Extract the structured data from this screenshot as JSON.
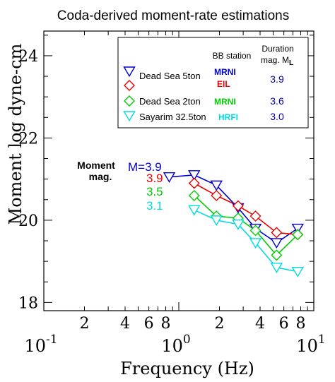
{
  "chart_data": {
    "type": "line",
    "title": "Coda-derived moment-rate estimations",
    "xlabel": "Frequency (Hz)",
    "ylabel": "Moment log dyne-cm",
    "x_scale": "log",
    "xlim": [
      0.1,
      10
    ],
    "ylim": [
      17.8,
      24.6
    ],
    "x_major_ticks": [
      {
        "value": 0.1,
        "base": "10",
        "exp": "-1"
      },
      {
        "value": 1,
        "base": "10",
        "exp": "0"
      },
      {
        "value": 10,
        "base": "10",
        "exp": "1"
      }
    ],
    "x_minor_ticks": [
      {
        "value": 0.2,
        "label": "2"
      },
      {
        "value": 0.4,
        "label": "4"
      },
      {
        "value": 0.6,
        "label": "6"
      },
      {
        "value": 0.8,
        "label": "8"
      },
      {
        "value": 2,
        "label": "2"
      },
      {
        "value": 4,
        "label": "4"
      },
      {
        "value": 6,
        "label": "6"
      },
      {
        "value": 8,
        "label": "8"
      }
    ],
    "y_ticks": [
      {
        "value": 18,
        "label": "18"
      },
      {
        "value": 20,
        "label": "20"
      },
      {
        "value": 22,
        "label": "22"
      },
      {
        "value": 24,
        "label": "24"
      }
    ],
    "legend": {
      "position": "top-right",
      "header_station": "BB station",
      "header_duration_line1": "Duration",
      "header_duration_line2": "mag. M",
      "header_duration_sub": "L",
      "entries": [
        {
          "event": "Dead Sea 5ton",
          "stations": [
            "MRNI",
            "EIL"
          ],
          "station_colors": [
            "#0000cc",
            "#ee0000"
          ],
          "ml": "3.9",
          "markers": [
            "tri-down",
            "diamond"
          ],
          "marker_colors": [
            "#0000cc",
            "#ee0000"
          ]
        },
        {
          "event": "Dead Sea 2ton",
          "stations": [
            "MRNI"
          ],
          "station_colors": [
            "#00cc00"
          ],
          "ml": "3.6",
          "markers": [
            "diamond"
          ],
          "marker_colors": [
            "#00cc00"
          ]
        },
        {
          "event": "Sayarim 32.5ton",
          "stations": [
            "HRFI"
          ],
          "station_colors": [
            "#00dddd"
          ],
          "ml": "3.0",
          "markers": [
            "tri-down"
          ],
          "marker_colors": [
            "#00dddd"
          ]
        }
      ]
    },
    "moment_mag_label_line1": "Moment",
    "moment_mag_label_line2": "mag.",
    "moment_mag_values": [
      {
        "text": "M=3.9",
        "color": "#0000cc"
      },
      {
        "text": "3.9",
        "color": "#ee0000"
      },
      {
        "text": "3.5",
        "color": "#00cc00"
      },
      {
        "text": "3.1",
        "color": "#00dddd"
      }
    ],
    "series": [
      {
        "marker": "tri-down",
        "color": "#0000cc",
        "x": [
          0.85,
          1.3,
          1.9,
          2.75,
          3.7,
          5.3,
          7.6
        ],
        "y": [
          21.05,
          21.1,
          20.85,
          20.3,
          19.8,
          19.45,
          19.8
        ]
      },
      {
        "marker": "diamond",
        "color": "#ee0000",
        "x": [
          1.3,
          1.9,
          2.75,
          3.7,
          5.3,
          7.6
        ],
        "y": [
          20.9,
          20.6,
          20.35,
          20.1,
          19.7,
          19.65
        ]
      },
      {
        "marker": "diamond",
        "color": "#00cc00",
        "x": [
          1.3,
          1.9,
          2.75,
          3.7,
          5.3,
          7.6
        ],
        "y": [
          20.6,
          20.1,
          20.05,
          19.75,
          19.15,
          19.65
        ]
      },
      {
        "marker": "tri-down",
        "color": "#00dddd",
        "x": [
          1.3,
          1.9,
          2.75,
          3.7,
          5.3,
          7.6
        ],
        "y": [
          20.25,
          20.0,
          19.9,
          19.45,
          18.85,
          18.75
        ]
      }
    ]
  }
}
